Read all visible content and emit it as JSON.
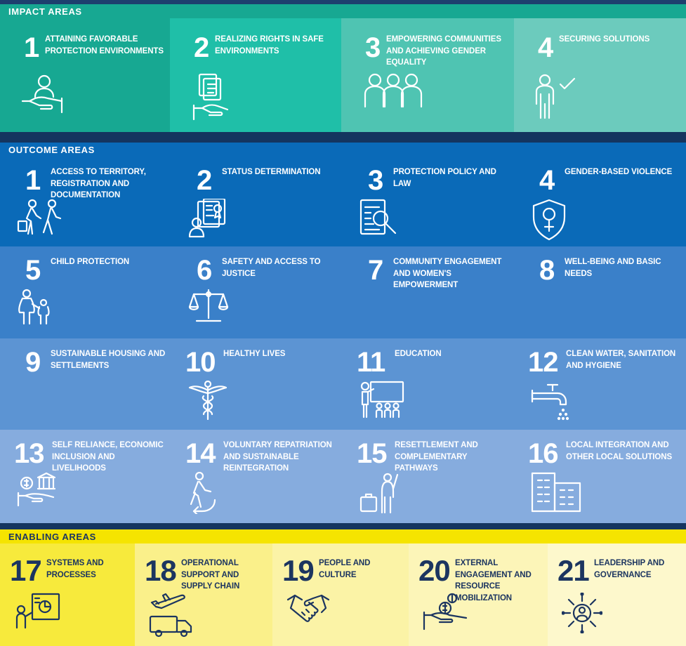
{
  "impact": {
    "header": "IMPACT AREAS",
    "items": [
      {
        "number": "1",
        "label": "ATTAINING FAVORABLE PROTECTION ENVIRONMENTS",
        "icon": "hand-holding-person-icon",
        "color": "#17a892"
      },
      {
        "number": "2",
        "label": "REALIZING RIGHTS IN SAFE ENVIRONMENTS",
        "icon": "hand-holding-documents-icon",
        "color": "#1fbfa8"
      },
      {
        "number": "3",
        "label": "EMPOWERING COMMUNITIES AND ACHIEVING GENDER EQUALITY",
        "icon": "group-of-people-icon",
        "color": "#4fc4b2"
      },
      {
        "number": "4",
        "label": "SECURING SOLUTIONS",
        "icon": "person-checkmark-icon",
        "color": "#6ccbbd"
      }
    ]
  },
  "outcome": {
    "header": "OUTCOME AREAS",
    "rows": [
      {
        "color": "#0a6ab8",
        "items": [
          {
            "number": "1",
            "label": "ACCESS TO TERRITORY, REGISTRATION AND DOCUMENTATION",
            "icon": "family-walking-icon"
          },
          {
            "number": "2",
            "label": "STATUS DETERMINATION",
            "icon": "person-certificate-icon"
          },
          {
            "number": "3",
            "label": "PROTECTION POLICY AND LAW",
            "icon": "document-magnifier-icon"
          },
          {
            "number": "4",
            "label": "GENDER-BASED VIOLENCE",
            "icon": "shield-female-icon"
          }
        ]
      },
      {
        "color": "#3a80c9",
        "items": [
          {
            "number": "5",
            "label": "CHILD PROTECTION",
            "icon": "adult-child-icon"
          },
          {
            "number": "6",
            "label": "SAFETY AND ACCESS TO JUSTICE",
            "icon": "scales-icon"
          },
          {
            "number": "7",
            "label": "COMMUNITY ENGAGEMENT AND WOMEN'S EMPOWERMENT",
            "icon": "community-icon"
          },
          {
            "number": "8",
            "label": "WELL-BEING AND BASIC NEEDS",
            "icon": "wellbeing-icon"
          }
        ]
      },
      {
        "color": "#5c94d3",
        "items": [
          {
            "number": "9",
            "label": "SUSTAINABLE HOUSING AND SETTLEMENTS",
            "icon": "housing-icon"
          },
          {
            "number": "10",
            "label": "HEALTHY LIVES",
            "icon": "caduceus-icon"
          },
          {
            "number": "11",
            "label": "EDUCATION",
            "icon": "teacher-board-icon"
          },
          {
            "number": "12",
            "label": "CLEAN WATER, SANITATION AND HYGIENE",
            "icon": "water-tap-icon"
          }
        ]
      },
      {
        "color": "#86acde",
        "items": [
          {
            "number": "13",
            "label": "SELF RELIANCE, ECONOMIC INCLUSION AND LIVELIHOODS",
            "icon": "hand-money-bank-icon"
          },
          {
            "number": "14",
            "label": "VOLUNTARY REPATRIATION AND SUSTAINABLE REINTEGRATION",
            "icon": "person-returning-icon"
          },
          {
            "number": "15",
            "label": "RESETTLEMENT AND COMPLEMENTARY PATHWAYS",
            "icon": "person-luggage-icon"
          },
          {
            "number": "16",
            "label": "LOCAL INTEGRATION AND OTHER LOCAL SOLUTIONS",
            "icon": "buildings-icon"
          }
        ]
      }
    ]
  },
  "enabling": {
    "header": "ENABLING AREAS",
    "items": [
      {
        "number": "17",
        "label": "SYSTEMS AND PROCESSES",
        "icon": "person-chart-board-icon",
        "color": "#f7ea3c"
      },
      {
        "number": "18",
        "label": "OPERATIONAL SUPPORT AND SUPPLY CHAIN",
        "icon": "plane-truck-icon",
        "color": "#faf08a"
      },
      {
        "number": "19",
        "label": "PEOPLE AND CULTURE",
        "icon": "handshake-icon",
        "color": "#fbf3a6"
      },
      {
        "number": "20",
        "label": "EXTERNAL ENGAGEMENT AND RESOURCE MOBILIZATION",
        "icon": "hand-coins-icon",
        "color": "#fcf5b8"
      },
      {
        "number": "21",
        "label": "LEADERSHIP AND GOVERNANCE",
        "icon": "leader-network-icon",
        "color": "#fdf8cc"
      }
    ]
  }
}
